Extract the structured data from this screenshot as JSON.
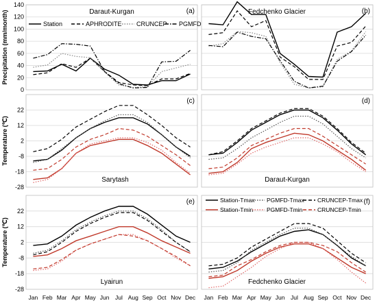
{
  "chart_data": [
    {
      "panel_label": "(a)",
      "title": "Daraut-Kurgan",
      "type": "line",
      "ylabel": "Precipitation (mm/month)",
      "ylim": [
        0,
        140
      ],
      "yticks": [
        0,
        20,
        40,
        60,
        80,
        100,
        120,
        140
      ],
      "categories": [
        "Jan",
        "Feb",
        "Mar",
        "Apr",
        "May",
        "Jun",
        "Jul",
        "Aug",
        "Sep",
        "Oct",
        "Nov",
        "Dec"
      ],
      "legend": "top",
      "series": [
        {
          "name": "Station",
          "style": "solid",
          "color": "#000000",
          "values": [
            30,
            31,
            42,
            31,
            52,
            34,
            24,
            9,
            8,
            15,
            15,
            26
          ]
        },
        {
          "name": "APHRODITE",
          "style": "dashed",
          "color": "#000000",
          "values": [
            25,
            28,
            43,
            37,
            52,
            30,
            12,
            8,
            7,
            18,
            18,
            27
          ]
        },
        {
          "name": "CRUNCEP",
          "style": "dotted",
          "color": "#888888",
          "values": [
            37,
            41,
            60,
            55,
            53,
            29,
            8,
            4,
            5,
            30,
            36,
            42
          ]
        },
        {
          "name": "PGMFD",
          "style": "dashdot",
          "color": "#000000",
          "values": [
            52,
            58,
            76,
            75,
            72,
            30,
            10,
            3,
            4,
            46,
            47,
            65
          ]
        }
      ]
    },
    {
      "panel_label": "(b)",
      "title": "Fedchenko Glacier",
      "type": "line",
      "ylim": [
        0,
        140
      ],
      "categories": [
        "Jan",
        "Feb",
        "Mar",
        "Apr",
        "May",
        "Jun",
        "Jul",
        "Aug",
        "Sep",
        "Oct",
        "Nov",
        "Dec"
      ],
      "series": [
        {
          "name": "Station",
          "style": "solid",
          "color": "#000000",
          "values": [
            109,
            107,
            145,
            124,
            124,
            60,
            42,
            22,
            21,
            95,
            104,
            126
          ]
        },
        {
          "name": "APHRODITE",
          "style": "dashed",
          "color": "#000000",
          "values": [
            91,
            94,
            130,
            104,
            114,
            54,
            38,
            17,
            17,
            72,
            78,
            105
          ]
        },
        {
          "name": "CRUNCEP",
          "style": "dotted",
          "color": "#888888",
          "values": [
            72,
            76,
            96,
            94,
            88,
            45,
            9,
            3,
            5,
            50,
            64,
            96
          ]
        },
        {
          "name": "PGMFD",
          "style": "dashdot",
          "color": "#000000",
          "values": [
            73,
            71,
            95,
            88,
            84,
            48,
            14,
            3,
            6,
            47,
            63,
            90
          ]
        }
      ]
    },
    {
      "panel_label": "(c)",
      "title": "Sarytash",
      "type": "line",
      "ylabel": "Temperature (℃)",
      "ylim": [
        -28,
        32
      ],
      "yticks": [
        -28,
        -18,
        -8,
        2,
        12,
        22
      ],
      "categories": [
        "Jan",
        "Feb",
        "Mar",
        "Apr",
        "May",
        "Jun",
        "Jul",
        "Aug",
        "Sep",
        "Oct",
        "Nov",
        "Dec"
      ],
      "series": [
        {
          "name": "Station-Tmax",
          "style": "solid",
          "color": "#000000",
          "values": [
            -11,
            -10,
            -4,
            4,
            10,
            14,
            17,
            17,
            13,
            6,
            -2,
            -8
          ]
        },
        {
          "name": "PGMFD-Tmax",
          "style": "dotted",
          "color": "#555555",
          "values": [
            -12,
            -10,
            -3,
            4,
            10,
            15,
            19,
            19,
            14,
            6,
            -2,
            -9
          ]
        },
        {
          "name": "CRUNCEP-Tmax",
          "style": "dashed",
          "color": "#000000",
          "values": [
            -5,
            -3,
            3,
            11,
            16,
            21,
            25,
            25,
            19,
            12,
            4,
            -2
          ]
        },
        {
          "name": "Station-Tmin",
          "style": "solid",
          "color": "#c0392b",
          "values": [
            -23,
            -22,
            -16,
            -6,
            -1,
            1,
            3,
            3,
            -1,
            -6,
            -13,
            -20
          ]
        },
        {
          "name": "PGMFD-Tmin",
          "style": "dotted",
          "color": "#e06666",
          "values": [
            -25,
            -23,
            -16,
            -6,
            0,
            2,
            4,
            4,
            1,
            -4,
            -12,
            -19
          ]
        },
        {
          "name": "CRUNCEP-Tmin",
          "style": "dashed",
          "color": "#c0392b",
          "values": [
            -17,
            -16,
            -10,
            -2,
            3,
            6,
            10,
            9,
            5,
            -1,
            -7,
            -14
          ]
        }
      ]
    },
    {
      "panel_label": "(d)",
      "title": "Daraut-Kurgan",
      "type": "line",
      "ylim": [
        -28,
        32
      ],
      "categories": [
        "Jan",
        "Feb",
        "Mar",
        "Apr",
        "May",
        "Jun",
        "Jul",
        "Aug",
        "Sep",
        "Oct",
        "Nov",
        "Dec"
      ],
      "series": [
        {
          "name": "Station-Tmax",
          "style": "solid",
          "color": "#000000",
          "values": [
            -7,
            -6,
            1,
            9,
            14,
            19,
            22,
            22,
            17,
            9,
            0,
            -7
          ]
        },
        {
          "name": "PGMFD-Tmax",
          "style": "dotted",
          "color": "#555555",
          "values": [
            -10,
            -9,
            -3,
            4,
            9,
            14,
            18,
            18,
            13,
            5,
            -3,
            -9
          ]
        },
        {
          "name": "CRUNCEP-Tmax",
          "style": "dashed",
          "color": "#000000",
          "values": [
            -7,
            -5,
            2,
            10,
            15,
            20,
            23,
            23,
            18,
            10,
            1,
            -6
          ]
        },
        {
          "name": "Station-Tmin",
          "style": "solid",
          "color": "#c0392b",
          "values": [
            -19,
            -18,
            -12,
            -3,
            1,
            4,
            7,
            6,
            2,
            -4,
            -10,
            -17
          ]
        },
        {
          "name": "PGMFD-Tmin",
          "style": "dotted",
          "color": "#e06666",
          "values": [
            -20,
            -19,
            -13,
            -6,
            -2,
            1,
            4,
            4,
            0,
            -5,
            -12,
            -18
          ]
        },
        {
          "name": "CRUNCEP-Tmin",
          "style": "dashed",
          "color": "#c0392b",
          "values": [
            -16,
            -15,
            -9,
            -1,
            3,
            7,
            10,
            10,
            5,
            -1,
            -7,
            -13
          ]
        }
      ]
    },
    {
      "panel_label": "(e)",
      "title": "Lyairun",
      "type": "line",
      "ylabel": "Temperature (℃)",
      "ylim": [
        -28,
        32
      ],
      "yticks": [
        -28,
        -18,
        -8,
        2,
        12,
        22
      ],
      "categories": [
        "Jan",
        "Feb",
        "Mar",
        "Apr",
        "May",
        "Jun",
        "Jul",
        "Aug",
        "Sep",
        "Oct",
        "Nov",
        "Dec"
      ],
      "series": [
        {
          "name": "Station-Tmax",
          "style": "solid",
          "color": "#000000",
          "values": [
            0,
            1,
            6,
            13,
            18,
            22,
            25,
            25,
            20,
            13,
            6,
            2
          ]
        },
        {
          "name": "PGMFD-Tmax",
          "style": "dotted",
          "color": "#555555",
          "values": [
            -5,
            -3,
            3,
            10,
            15,
            19,
            22,
            22,
            17,
            10,
            2,
            -4
          ]
        },
        {
          "name": "CRUNCEP-Tmax",
          "style": "dashed",
          "color": "#000000",
          "values": [
            -6,
            -4,
            2,
            9,
            14,
            18,
            21,
            21,
            16,
            9,
            2,
            -4
          ]
        },
        {
          "name": "Station-Tmin",
          "style": "solid",
          "color": "#c0392b",
          "values": [
            -7,
            -6,
            -2,
            3,
            6,
            9,
            12,
            12,
            8,
            3,
            -1,
            -5
          ]
        },
        {
          "name": "PGMFD-Tmin",
          "style": "dotted",
          "color": "#e06666",
          "values": [
            -16,
            -15,
            -10,
            -3,
            1,
            4,
            7,
            7,
            3,
            -2,
            -8,
            -13
          ]
        },
        {
          "name": "CRUNCEP-Tmin",
          "style": "dashed",
          "color": "#c0392b",
          "values": [
            -15,
            -14,
            -9,
            -3,
            1,
            4,
            7,
            6,
            3,
            -2,
            -7,
            -13
          ]
        }
      ]
    },
    {
      "panel_label": "(f)",
      "title": "Fedchenko Glacier",
      "type": "line",
      "ylim": [
        -28,
        32
      ],
      "categories": [
        "Jan",
        "Feb",
        "Mar",
        "Apr",
        "May",
        "Jun",
        "Jul",
        "Aug",
        "Sep",
        "Oct",
        "Nov",
        "Dec"
      ],
      "series": [
        {
          "name": "Station-Tmax",
          "style": "solid",
          "color": "#000000",
          "values": [
            -15,
            -14,
            -10,
            -4,
            1,
            6,
            9,
            10,
            7,
            0,
            -8,
            -13
          ]
        },
        {
          "name": "PGMFD-Tmax",
          "style": "dotted",
          "color": "#555555",
          "values": [
            -17,
            -16,
            -11,
            -3,
            2,
            7,
            11,
            11,
            7,
            0,
            -7,
            -13
          ]
        },
        {
          "name": "CRUNCEP-Tmax",
          "style": "dashed",
          "color": "#000000",
          "values": [
            -13,
            -12,
            -8,
            -1,
            4,
            9,
            14,
            14,
            11,
            3,
            -5,
            -11
          ]
        },
        {
          "name": "Station-Tmin",
          "style": "solid",
          "color": "#c0392b",
          "values": [
            -21,
            -20,
            -16,
            -10,
            -5,
            -1,
            1,
            1,
            -2,
            -8,
            -14,
            -18
          ]
        },
        {
          "name": "PGMFD-Tmin",
          "style": "dotted",
          "color": "#e06666",
          "values": [
            -27,
            -26,
            -20,
            -14,
            -7,
            -2,
            2,
            2,
            -2,
            -9,
            -17,
            -24
          ]
        },
        {
          "name": "CRUNCEP-Tmin",
          "style": "dashed",
          "color": "#c0392b",
          "values": [
            -20,
            -19,
            -13,
            -9,
            -4,
            0,
            2,
            2,
            0,
            -4,
            -11,
            -17
          ]
        }
      ]
    }
  ],
  "legend_temperature": [
    {
      "name": "Station-Tmax",
      "style": "solid",
      "color": "#000000"
    },
    {
      "name": "PGMFD-Tmax",
      "style": "dotted",
      "color": "#555555"
    },
    {
      "name": "CRUNCEP-Tmax",
      "style": "dashed",
      "color": "#000000"
    },
    {
      "name": "Station-Tmin",
      "style": "solid",
      "color": "#c0392b"
    },
    {
      "name": "PGMFD-Tmin",
      "style": "dotted",
      "color": "#e06666"
    },
    {
      "name": "CRUNCEP-Tmin",
      "style": "dashed",
      "color": "#c0392b"
    }
  ],
  "x_month_labels": [
    "Jan",
    "Feb",
    "Mar",
    "Apr",
    "May",
    "Jun",
    "Jul",
    "Aug",
    "Sep",
    "Oct",
    "Nov",
    "Dec"
  ]
}
